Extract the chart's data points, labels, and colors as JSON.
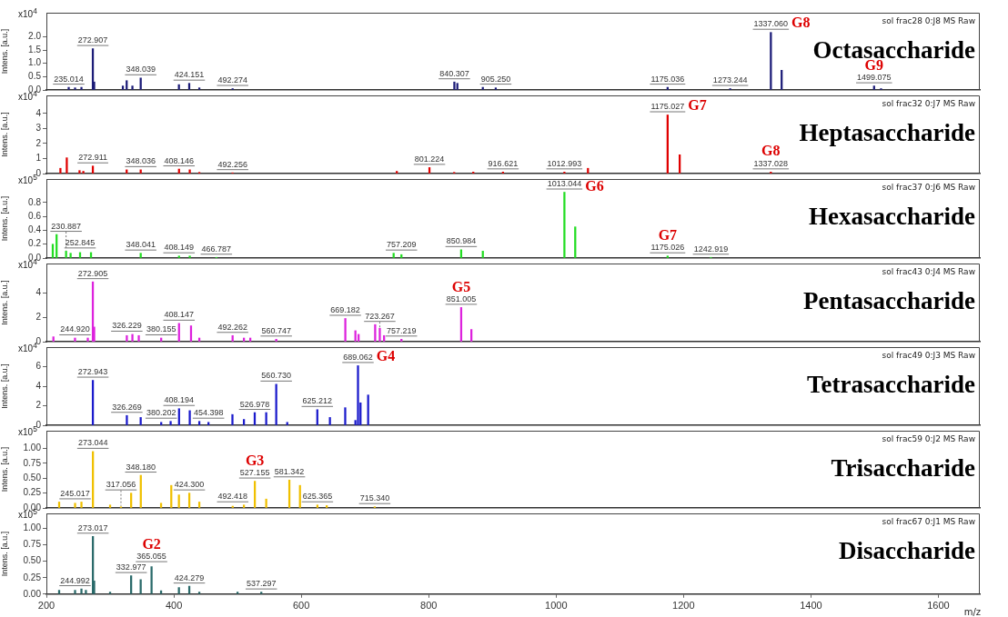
{
  "chart_data": [
    {
      "type": "bar",
      "title": "Octasaccharide",
      "subtitle": "sol frac28 0:J8 MS Raw",
      "ylabel": "Intens. [a.u.]",
      "color": "#1c1c78",
      "grid": false,
      "legend": false,
      "tick_labels": "y",
      "xlim": [
        200,
        1665
      ],
      "xticks": [
        200,
        400,
        600,
        800,
        1000,
        1200,
        1400,
        1600
      ],
      "ylim": [
        0,
        2.9
      ],
      "yticks": [
        {
          "value": 0,
          "label": "0.0"
        },
        {
          "value": 0.5,
          "label": "0.5"
        },
        {
          "value": 1,
          "label": "1.0"
        },
        {
          "value": 1.5,
          "label": "1.5"
        },
        {
          "value": 2,
          "label": "2.0"
        }
      ],
      "x": [
        235.014,
        245,
        255,
        272.907,
        275,
        320,
        326,
        335,
        348.039,
        408,
        424.151,
        440,
        492.274,
        840.307,
        845,
        885,
        905.25,
        1175.036,
        1273.244,
        1337.06,
        1354,
        1499.075,
        1510
      ],
      "values": [
        0.1,
        0.08,
        0.1,
        1.55,
        0.3,
        0.15,
        0.35,
        0.15,
        0.45,
        0.2,
        0.25,
        0.08,
        0.05,
        0.3,
        0.25,
        0.1,
        0.08,
        0.1,
        0.05,
        2.16,
        0.74,
        0.15,
        0.05
      ],
      "annotations": [
        "x10$^{4}$",
        {
          "text": "235.014",
          "x": 235.014,
          "y": 0.1
        },
        {
          "text": "272.907",
          "x": 272.907,
          "y": 1.55
        },
        {
          "text": "348.039",
          "x": 348.039,
          "y": 0.45
        },
        {
          "text": "424.151",
          "x": 424.151,
          "y": 0.25
        },
        {
          "text": "492.274",
          "x": 492.274,
          "y": 0.05
        },
        {
          "text": "840.307",
          "x": 840.307,
          "y": 0.3
        },
        {
          "text": "905.250",
          "x": 905.25,
          "y": 0.08
        },
        {
          "text": "1175.036",
          "x": 1175.036,
          "y": 0.1
        },
        {
          "text": "1273.244",
          "x": 1273.244,
          "y": 0.05
        },
        {
          "text": "1337.060",
          "x": 1337.06,
          "y": 2.16
        },
        {
          "text": "G8",
          "x": 1337.06,
          "y": 2.16
        },
        {
          "text": "1499.075",
          "x": 1499.075,
          "y": 0.15
        },
        {
          "text": "G9",
          "x": 1499.075,
          "y": 0.15
        }
      ]
    },
    {
      "type": "bar",
      "title": "Heptasaccharide",
      "subtitle": "sol frac32 0:J7 MS Raw",
      "ylabel": "Intens. [a.u.]",
      "color": "#e00000",
      "grid": false,
      "legend": false,
      "tick_labels": "y",
      "xlim": [
        200,
        1665
      ],
      "xticks": [
        200,
        400,
        600,
        800,
        1000,
        1200,
        1400,
        1600
      ],
      "ylim": [
        0,
        5.2
      ],
      "yticks": [
        0,
        1,
        2,
        3,
        4
      ],
      "x": [
        222,
        232,
        252,
        258,
        272.911,
        326,
        348.036,
        408.146,
        425,
        440,
        492.256,
        750,
        801.224,
        840,
        870,
        916.621,
        1012.993,
        1050,
        1175.027,
        1194,
        1337.028
      ],
      "values": [
        0.35,
        1.05,
        0.2,
        0.15,
        0.5,
        0.25,
        0.25,
        0.3,
        0.25,
        0.08,
        0.05,
        0.15,
        0.4,
        0.08,
        0.1,
        0.1,
        0.1,
        0.35,
        3.9,
        1.25,
        0.1
      ],
      "annotations": [
        "x10$^{4}$",
        {
          "text": "272.911",
          "x": 272.911,
          "y": 0.5
        },
        {
          "text": "348.036",
          "x": 348.036,
          "y": 0.25
        },
        {
          "text": "408.146",
          "x": 408.146,
          "y": 0.3
        },
        {
          "text": "492.256",
          "x": 492.256,
          "y": 0.05
        },
        {
          "text": "801.224",
          "x": 801.224,
          "y": 0.4
        },
        {
          "text": "916.621",
          "x": 916.621,
          "y": 0.1
        },
        {
          "text": "1012.993",
          "x": 1012.993,
          "y": 0.1
        },
        {
          "text": "1175.027",
          "x": 1175.027,
          "y": 3.9
        },
        {
          "text": "G7",
          "x": 1175.027,
          "y": 3.9
        },
        {
          "text": "1337.028",
          "x": 1337.028,
          "y": 0.1
        },
        {
          "text": "G8",
          "x": 1337.028,
          "y": 0.1
        }
      ]
    },
    {
      "type": "bar",
      "title": "Hexasaccharide",
      "subtitle": "sol frac37 0:J6 MS Raw",
      "ylabel": "Intens. [a.u.]",
      "color": "#22dd22",
      "grid": false,
      "legend": false,
      "tick_labels": "y",
      "xlim": [
        200,
        1665
      ],
      "xticks": [
        200,
        400,
        600,
        800,
        1000,
        1200,
        1400,
        1600
      ],
      "ylim": [
        0,
        1.14
      ],
      "yticks": [
        {
          "value": 0,
          "label": "0.0"
        },
        {
          "value": 0.2,
          "label": "0.2"
        },
        {
          "value": 0.4,
          "label": "0.4"
        },
        {
          "value": 0.6,
          "label": "0.6"
        },
        {
          "value": 0.8,
          "label": "0.8"
        }
      ],
      "x": [
        210,
        216,
        230.887,
        238,
        252.845,
        270,
        348.041,
        408.149,
        425,
        466.787,
        745,
        757.209,
        850.984,
        885,
        1013.044,
        1030,
        1175.026,
        1242.919
      ],
      "values": [
        0.2,
        0.34,
        0.1,
        0.07,
        0.08,
        0.08,
        0.07,
        0.03,
        0.03,
        0.01,
        0.07,
        0.05,
        0.12,
        0.1,
        0.95,
        0.45,
        0.03,
        0.01
      ],
      "annotations": [
        "x10$^{5}$",
        {
          "text": "230.887",
          "x": 230.887,
          "y": 0.1
        },
        {
          "text": "252.845",
          "x": 252.845,
          "y": 0.08
        },
        {
          "text": "348.041",
          "x": 348.041,
          "y": 0.07
        },
        {
          "text": "408.149",
          "x": 408.149,
          "y": 0.03
        },
        {
          "text": "466.787",
          "x": 466.787,
          "y": 0.01
        },
        {
          "text": "757.209",
          "x": 757.209,
          "y": 0.05
        },
        {
          "text": "850.984",
          "x": 850.984,
          "y": 0.12
        },
        {
          "text": "1013.044",
          "x": 1013.044,
          "y": 0.95
        },
        {
          "text": "G6",
          "x": 1013.044,
          "y": 0.95
        },
        {
          "text": "1175.026",
          "x": 1175.026,
          "y": 0.03
        },
        {
          "text": "G7",
          "x": 1175.026,
          "y": 0.03
        },
        {
          "text": "1242.919",
          "x": 1242.919,
          "y": 0.01
        }
      ]
    },
    {
      "type": "bar",
      "title": "Pentasaccharide",
      "subtitle": "sol frac43 0:J4 MS Raw",
      "ylabel": "Intens. [a.u.]",
      "color": "#dd22dd",
      "grid": false,
      "legend": false,
      "tick_labels": "y",
      "xlim": [
        200,
        1665
      ],
      "xticks": [
        200,
        400,
        600,
        800,
        1000,
        1200,
        1400,
        1600
      ],
      "ylim": [
        0,
        6.4
      ],
      "yticks": [
        0,
        2,
        4
      ],
      "x": [
        211,
        244.92,
        265,
        272.905,
        275,
        326.229,
        335,
        345,
        380.155,
        408.147,
        427,
        440,
        492.262,
        510,
        520,
        560.747,
        669.182,
        685,
        690,
        716,
        723.267,
        730,
        757.219,
        851.005,
        867
      ],
      "values": [
        0.4,
        0.3,
        0.3,
        4.9,
        1.2,
        0.5,
        0.6,
        0.5,
        0.3,
        1.5,
        1.3,
        0.3,
        0.5,
        0.3,
        0.3,
        0.2,
        1.9,
        0.9,
        0.6,
        1.4,
        1.1,
        0.5,
        0.2,
        2.8,
        1.0
      ],
      "annotations": [
        "x10$^{4}$",
        {
          "text": "244.920",
          "x": 244.92,
          "y": 0.3
        },
        {
          "text": "272.905",
          "x": 272.905,
          "y": 4.9
        },
        {
          "text": "326.229",
          "x": 326.229,
          "y": 0.5
        },
        {
          "text": "380.155",
          "x": 380.155,
          "y": 0.3
        },
        {
          "text": "408.147",
          "x": 408.147,
          "y": 1.5
        },
        {
          "text": "492.262",
          "x": 492.262,
          "y": 0.5
        },
        {
          "text": "560.747",
          "x": 560.747,
          "y": 0.2
        },
        {
          "text": "669.182",
          "x": 669.182,
          "y": 1.9
        },
        {
          "text": "723.267",
          "x": 723.267,
          "y": 1.1
        },
        {
          "text": "757.219",
          "x": 757.219,
          "y": 0.2
        },
        {
          "text": "851.005",
          "x": 851.005,
          "y": 2.8
        },
        {
          "text": "G5",
          "x": 851.005,
          "y": 2.8
        }
      ]
    },
    {
      "type": "bar",
      "title": "Tetrasaccharide",
      "subtitle": "sol frac49 0:J3 MS Raw",
      "ylabel": "Intens. [a.u.]",
      "color": "#1a1acc",
      "grid": false,
      "legend": false,
      "tick_labels": "y",
      "xlim": [
        200,
        1665
      ],
      "xticks": [
        200,
        400,
        600,
        800,
        1000,
        1200,
        1400,
        1600
      ],
      "ylim": [
        0,
        8
      ],
      "yticks": [
        0,
        2,
        4,
        6
      ],
      "x": [
        272.943,
        326.269,
        348,
        380.202,
        395,
        408.194,
        425,
        440,
        454.398,
        492,
        510,
        526.978,
        545,
        560.73,
        578,
        625.212,
        645,
        669,
        685,
        689.062,
        693,
        705
      ],
      "values": [
        4.6,
        1.0,
        0.8,
        0.3,
        0.4,
        1.7,
        1.5,
        0.4,
        0.3,
        1.1,
        0.6,
        1.3,
        1.3,
        4.2,
        0.3,
        1.6,
        0.8,
        1.8,
        0.5,
        6.1,
        2.3,
        3.1
      ],
      "annotations": [
        "x10$^{4}$",
        {
          "text": "272.943",
          "x": 272.943,
          "y": 4.6
        },
        {
          "text": "326.269",
          "x": 326.269,
          "y": 1.0
        },
        {
          "text": "380.202",
          "x": 380.202,
          "y": 0.3
        },
        {
          "text": "408.194",
          "x": 408.194,
          "y": 1.7
        },
        {
          "text": "454.398",
          "x": 454.398,
          "y": 0.3
        },
        {
          "text": "526.978",
          "x": 526.978,
          "y": 1.3
        },
        {
          "text": "560.730",
          "x": 560.73,
          "y": 4.2
        },
        {
          "text": "625.212",
          "x": 625.212,
          "y": 1.6
        },
        {
          "text": "689.062",
          "x": 689.062,
          "y": 6.1
        },
        {
          "text": "G4",
          "x": 689.062,
          "y": 6.1
        }
      ]
    },
    {
      "type": "bar",
      "title": "Trisaccharide",
      "subtitle": "sol frac59 0:J2 MS Raw",
      "ylabel": "Intens. [a.u.]",
      "color": "#f0c000",
      "grid": false,
      "legend": false,
      "tick_labels": "y",
      "xlim": [
        200,
        1665
      ],
      "xticks": [
        200,
        400,
        600,
        800,
        1000,
        1200,
        1400,
        1600
      ],
      "ylim": [
        0,
        1.3
      ],
      "yticks": [
        {
          "value": 0,
          "label": "0.00"
        },
        {
          "value": 0.25,
          "label": "0.25"
        },
        {
          "value": 0.5,
          "label": "0.50"
        },
        {
          "value": 0.75,
          "label": "0.75"
        },
        {
          "value": 1,
          "label": "1.00"
        }
      ],
      "x": [
        220,
        245.017,
        255,
        273.044,
        300,
        317.056,
        333,
        348.18,
        380,
        396,
        408,
        424.3,
        440,
        492.418,
        510,
        527.155,
        545,
        581.342,
        598,
        625.365,
        640,
        715.34
      ],
      "values": [
        0.1,
        0.08,
        0.1,
        0.95,
        0.05,
        0.02,
        0.25,
        0.55,
        0.08,
        0.38,
        0.22,
        0.25,
        0.1,
        0.03,
        0.05,
        0.45,
        0.15,
        0.47,
        0.38,
        0.05,
        0.04,
        0.02
      ],
      "annotations": [
        "x10$^{5}$",
        {
          "text": "245.017",
          "x": 245.017,
          "y": 0.08
        },
        {
          "text": "273.044",
          "x": 273.044,
          "y": 0.95
        },
        {
          "text": "317.056",
          "x": 317.056,
          "y": 0.02
        },
        {
          "text": "348.180",
          "x": 348.18,
          "y": 0.55
        },
        {
          "text": "424.300",
          "x": 424.3,
          "y": 0.25
        },
        {
          "text": "492.418",
          "x": 492.418,
          "y": 0.03
        },
        {
          "text": "527.155",
          "x": 527.155,
          "y": 0.45
        },
        {
          "text": "G3",
          "x": 527.155,
          "y": 0.45
        },
        {
          "text": "581.342",
          "x": 581.342,
          "y": 0.47
        },
        {
          "text": "625.365",
          "x": 625.365,
          "y": 0.05
        },
        {
          "text": "715.340",
          "x": 715.34,
          "y": 0.02
        }
      ]
    },
    {
      "type": "bar",
      "title": "Disaccharide",
      "subtitle": "sol frac67 0:J1 MS Raw",
      "ylabel": "Intens. [a.u.]",
      "xlabel": "m/z",
      "color": "#2a6a6a",
      "grid": false,
      "legend": false,
      "xlim": [
        200,
        1665
      ],
      "xticks": [
        200,
        400,
        600,
        800,
        1000,
        1200,
        1400,
        1600
      ],
      "ylim": [
        0,
        1.23
      ],
      "yticks": [
        {
          "value": 0,
          "label": "0.00"
        },
        {
          "value": 0.25,
          "label": "0.25"
        },
        {
          "value": 0.5,
          "label": "0.50"
        },
        {
          "value": 0.75,
          "label": "0.75"
        },
        {
          "value": 1,
          "label": "1.00"
        }
      ],
      "x": [
        220,
        244.992,
        255,
        262,
        273.017,
        275,
        300,
        332.977,
        348,
        365.055,
        380,
        408,
        424.279,
        440,
        500,
        537.297
      ],
      "values": [
        0.06,
        0.06,
        0.08,
        0.06,
        0.88,
        0.2,
        0.03,
        0.28,
        0.22,
        0.42,
        0.05,
        0.1,
        0.12,
        0.03,
        0.03,
        0.03
      ],
      "annotations": [
        "x10$^{5}$",
        {
          "text": "244.992",
          "x": 244.992,
          "y": 0.06
        },
        {
          "text": "273.017",
          "x": 273.017,
          "y": 0.88
        },
        {
          "text": "332.977",
          "x": 332.977,
          "y": 0.28
        },
        {
          "text": "365.055",
          "x": 365.055,
          "y": 0.42
        },
        {
          "text": "G2",
          "x": 365.055,
          "y": 0.42
        },
        {
          "text": "424.279",
          "x": 424.279,
          "y": 0.12
        },
        {
          "text": "537.297",
          "x": 537.297,
          "y": 0.03
        }
      ]
    }
  ]
}
